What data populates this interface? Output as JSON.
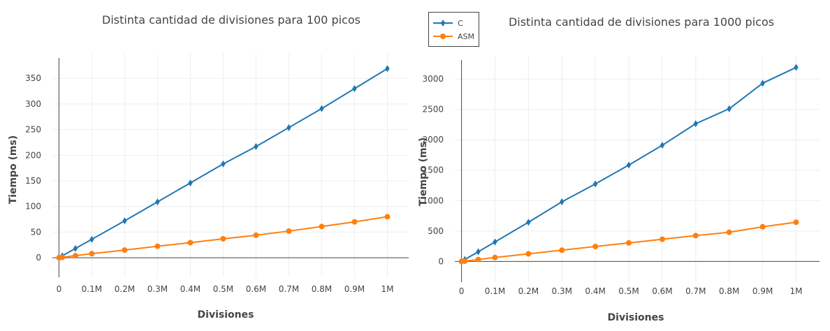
{
  "legend": {
    "items": [
      {
        "label": "C",
        "color": "#1f77b4",
        "marker": "diamond"
      },
      {
        "label": "ASM",
        "color": "#ff7f0e",
        "marker": "circle"
      }
    ]
  },
  "chart_data": [
    {
      "type": "line",
      "title": "Distinta cantidad de divisiones para 100 picos",
      "xlabel": "Divisiones",
      "ylabel": "Tiempo (ms)",
      "xlim": [
        -20000,
        1065000
      ],
      "ylim": [
        -38,
        398
      ],
      "xticks": [
        {
          "value": 0,
          "label": "0"
        },
        {
          "value": 100000,
          "label": "0.1M"
        },
        {
          "value": 200000,
          "label": "0.2M"
        },
        {
          "value": 300000,
          "label": "0.3M"
        },
        {
          "value": 400000,
          "label": "0.4M"
        },
        {
          "value": 500000,
          "label": "0.5M"
        },
        {
          "value": 600000,
          "label": "0.6M"
        },
        {
          "value": 700000,
          "label": "0.7M"
        },
        {
          "value": 800000,
          "label": "0.8M"
        },
        {
          "value": 900000,
          "label": "0.9M"
        },
        {
          "value": 1000000,
          "label": "1M"
        }
      ],
      "yticks": [
        {
          "value": 0,
          "label": "0"
        },
        {
          "value": 50,
          "label": "50"
        },
        {
          "value": 100,
          "label": "100"
        },
        {
          "value": 150,
          "label": "150"
        },
        {
          "value": 200,
          "label": "200"
        },
        {
          "value": 250,
          "label": "250"
        },
        {
          "value": 300,
          "label": "300"
        },
        {
          "value": 350,
          "label": "350"
        }
      ],
      "grid": true,
      "x": [
        0,
        10000,
        50000,
        100000,
        200000,
        300000,
        400000,
        500000,
        600000,
        700000,
        800000,
        900000,
        1000000
      ],
      "series": [
        {
          "name": "C",
          "color": "#1f77b4",
          "marker": "diamond",
          "values": [
            0.5,
            3.7,
            18,
            36,
            72,
            109,
            146,
            183,
            217,
            254,
            291,
            330,
            369
          ]
        },
        {
          "name": "ASM",
          "color": "#ff7f0e",
          "marker": "circle",
          "values": [
            0.1,
            0.8,
            4,
            8,
            15,
            22.5,
            29.5,
            37,
            44,
            52,
            61,
            70,
            80
          ]
        }
      ]
    },
    {
      "type": "line",
      "title": "Distinta cantidad de divisiones para 1000 picos",
      "xlabel": "Divisiones",
      "ylabel": "Tiempo (ms)",
      "xlim": [
        -20000,
        1070000
      ],
      "ylim": [
        -340,
        3380
      ],
      "xticks": [
        {
          "value": 0,
          "label": "0"
        },
        {
          "value": 100000,
          "label": "0.1M"
        },
        {
          "value": 200000,
          "label": "0.2M"
        },
        {
          "value": 300000,
          "label": "0.3M"
        },
        {
          "value": 400000,
          "label": "0.4M"
        },
        {
          "value": 500000,
          "label": "0.5M"
        },
        {
          "value": 600000,
          "label": "0.6M"
        },
        {
          "value": 700000,
          "label": "0.7M"
        },
        {
          "value": 800000,
          "label": "0.8M"
        },
        {
          "value": 900000,
          "label": "0.9M"
        },
        {
          "value": 1000000,
          "label": "1M"
        }
      ],
      "yticks": [
        {
          "value": 0,
          "label": "0"
        },
        {
          "value": 500,
          "label": "500"
        },
        {
          "value": 1000,
          "label": "1000"
        },
        {
          "value": 1500,
          "label": "1500"
        },
        {
          "value": 2000,
          "label": "2000"
        },
        {
          "value": 2500,
          "label": "2500"
        },
        {
          "value": 3000,
          "label": "3000"
        }
      ],
      "grid": true,
      "x": [
        0,
        10000,
        50000,
        100000,
        200000,
        300000,
        400000,
        500000,
        600000,
        700000,
        800000,
        900000,
        1000000
      ],
      "series": [
        {
          "name": "C",
          "color": "#1f77b4",
          "marker": "diamond",
          "values": [
            5,
            32,
            160,
            320,
            645,
            980,
            1275,
            1585,
            1910,
            2265,
            2510,
            2930,
            3190
          ]
        },
        {
          "name": "ASM",
          "color": "#ff7f0e",
          "marker": "circle",
          "values": [
            1,
            6,
            32,
            65,
            125,
            185,
            245,
            305,
            365,
            425,
            480,
            570,
            645
          ]
        }
      ]
    }
  ]
}
